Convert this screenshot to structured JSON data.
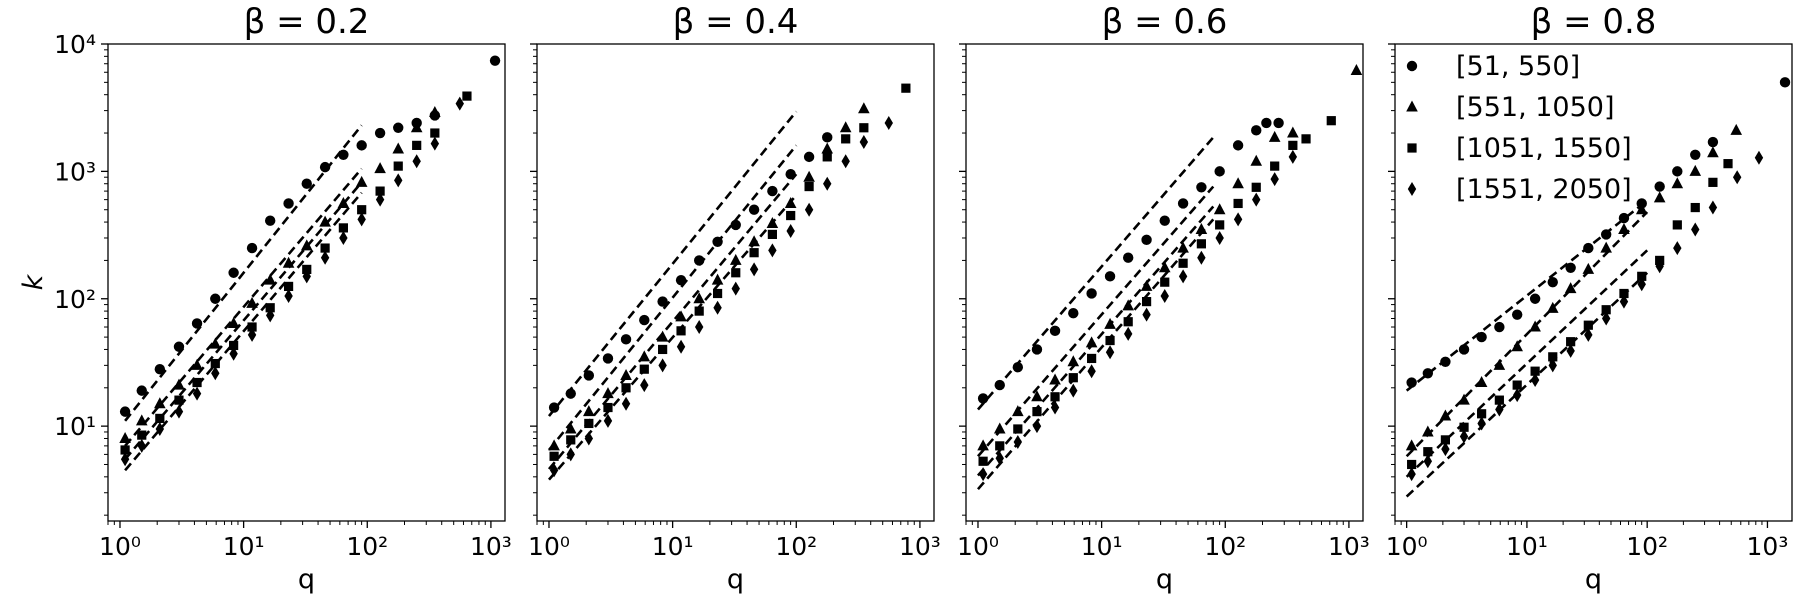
{
  "chart_data": [
    {
      "type": "scatter",
      "title": "β = 0.2",
      "xlabel": "q",
      "ylabel": "k",
      "x_scale": "log",
      "y_scale": "log",
      "xlim": [
        0.8,
        1300
      ],
      "ylim": [
        1.8,
        10000
      ],
      "xticks": [
        1,
        10,
        100,
        1000
      ],
      "yticks": [
        10,
        100,
        1000,
        10000
      ],
      "series": [
        {
          "name": "[51, 550]",
          "marker": "circle",
          "x": [
            1.1,
            1.5,
            2.1,
            3.0,
            4.2,
            5.9,
            8.3,
            11.7,
            16.4,
            23.1,
            32.4,
            45.6,
            64.1,
            90.1,
            127,
            178,
            251,
            352,
            1080
          ],
          "y": [
            13,
            19,
            28,
            42,
            64,
            100,
            160,
            250,
            410,
            560,
            800,
            1080,
            1350,
            1600,
            2000,
            2200,
            2400,
            2750,
            7400
          ]
        },
        {
          "name": "[551, 1050]",
          "marker": "triangle",
          "x": [
            1.1,
            1.5,
            2.1,
            3.0,
            4.2,
            5.9,
            8.3,
            11.7,
            16.4,
            23.1,
            32.4,
            45.6,
            64.1,
            90.1,
            127,
            178,
            251,
            352
          ],
          "y": [
            8,
            11,
            15,
            21,
            30,
            44,
            64,
            92,
            140,
            190,
            260,
            400,
            560,
            820,
            1050,
            1500,
            2200,
            2900
          ]
        },
        {
          "name": "[1051, 1550]",
          "marker": "square",
          "x": [
            1.1,
            1.5,
            2.1,
            3.0,
            4.2,
            5.9,
            8.3,
            11.7,
            16.4,
            23.1,
            32.4,
            45.6,
            64.1,
            90.1,
            127,
            178,
            251,
            352,
            640
          ],
          "y": [
            6.5,
            8.5,
            11.5,
            16,
            22,
            31,
            43,
            60,
            85,
            125,
            170,
            250,
            360,
            500,
            700,
            1100,
            1600,
            2000,
            3900
          ]
        },
        {
          "name": "[1551, 2050]",
          "marker": "diamond",
          "x": [
            1.1,
            1.5,
            2.1,
            3.0,
            4.2,
            5.9,
            8.3,
            11.7,
            16.4,
            23.1,
            32.4,
            45.6,
            64.1,
            90.1,
            127,
            178,
            251,
            352,
            560
          ],
          "y": [
            5.5,
            7,
            9.5,
            13,
            18,
            26,
            37,
            52,
            74,
            105,
            150,
            210,
            300,
            420,
            600,
            850,
            1200,
            1650,
            3400
          ]
        }
      ],
      "fit_lines": [
        {
          "x": [
            1.1,
            90
          ],
          "y": [
            11,
            2300
          ]
        },
        {
          "x": [
            1.1,
            90
          ],
          "y": [
            7,
            1050
          ]
        },
        {
          "x": [
            1.1,
            90
          ],
          "y": [
            5.5,
            820
          ]
        },
        {
          "x": [
            1.1,
            90
          ],
          "y": [
            4.5,
            680
          ]
        }
      ]
    },
    {
      "type": "scatter",
      "title": "β = 0.4",
      "xlabel": "q",
      "ylabel": "",
      "x_scale": "log",
      "y_scale": "log",
      "xlim": [
        0.8,
        1300
      ],
      "ylim": [
        1.8,
        10000
      ],
      "xticks": [
        1,
        10,
        100,
        1000
      ],
      "yticks": [
        10,
        100,
        1000,
        10000
      ],
      "series": [
        {
          "name": "[51, 550]",
          "marker": "circle",
          "x": [
            1.1,
            1.5,
            2.1,
            3.0,
            4.2,
            5.9,
            8.3,
            11.7,
            16.4,
            23.1,
            32.4,
            45.6,
            64.1,
            90.1,
            127,
            178
          ],
          "y": [
            14,
            18,
            25,
            34,
            48,
            68,
            95,
            140,
            200,
            280,
            380,
            500,
            700,
            950,
            1300,
            1850
          ]
        },
        {
          "name": "[551, 1050]",
          "marker": "triangle",
          "x": [
            1.1,
            1.5,
            2.1,
            3.0,
            4.2,
            5.9,
            8.3,
            11.7,
            16.4,
            23.1,
            32.4,
            45.6,
            64.1,
            90.1,
            127,
            178,
            251,
            352
          ],
          "y": [
            7,
            9.5,
            13,
            18,
            25,
            35,
            50,
            72,
            100,
            140,
            200,
            280,
            390,
            560,
            900,
            1500,
            2200,
            3100
          ]
        },
        {
          "name": "[1051, 1550]",
          "marker": "square",
          "x": [
            1.1,
            1.5,
            2.1,
            3.0,
            4.2,
            5.9,
            8.3,
            11.7,
            16.4,
            23.1,
            32.4,
            45.6,
            64.1,
            90.1,
            127,
            178,
            251,
            352,
            770
          ],
          "y": [
            5.8,
            7.8,
            10.5,
            14,
            20,
            28,
            40,
            56,
            80,
            110,
            160,
            230,
            320,
            450,
            760,
            1300,
            1800,
            2200,
            4500
          ]
        },
        {
          "name": "[1551, 2050]",
          "marker": "diamond",
          "x": [
            1.1,
            1.5,
            2.1,
            3.0,
            4.2,
            5.9,
            8.3,
            11.7,
            16.4,
            23.1,
            32.4,
            45.6,
            64.1,
            90.1,
            127,
            178,
            251,
            352,
            560
          ],
          "y": [
            4.5,
            6,
            8,
            11,
            15,
            21,
            30,
            42,
            60,
            85,
            120,
            170,
            240,
            340,
            500,
            800,
            1200,
            1700,
            2400
          ]
        }
      ],
      "fit_lines": [
        {
          "x": [
            1.0,
            100
          ],
          "y": [
            12,
            2950
          ]
        },
        {
          "x": [
            1.0,
            100
          ],
          "y": [
            6.5,
            1600
          ]
        },
        {
          "x": [
            1.0,
            100
          ],
          "y": [
            4.6,
            950
          ]
        },
        {
          "x": [
            1.0,
            100
          ],
          "y": [
            3.8,
            650
          ]
        }
      ]
    },
    {
      "type": "scatter",
      "title": "β = 0.6",
      "xlabel": "q",
      "ylabel": "",
      "x_scale": "log",
      "y_scale": "log",
      "xlim": [
        0.8,
        1300
      ],
      "ylim": [
        1.8,
        10000
      ],
      "xticks": [
        1,
        10,
        100,
        1000
      ],
      "yticks": [
        10,
        100,
        1000,
        10000
      ],
      "series": [
        {
          "name": "[51, 550]",
          "marker": "circle",
          "x": [
            1.1,
            1.5,
            2.1,
            3.0,
            4.2,
            5.9,
            8.3,
            11.7,
            16.4,
            23.1,
            32.4,
            45.6,
            64.1,
            90.1,
            127,
            178,
            215,
            270
          ],
          "y": [
            16.5,
            21,
            29,
            40,
            56,
            77,
            110,
            150,
            210,
            290,
            410,
            560,
            750,
            1000,
            1600,
            2100,
            2400,
            2400
          ]
        },
        {
          "name": "[551, 1050]",
          "marker": "triangle",
          "x": [
            1.1,
            1.5,
            2.1,
            3.0,
            4.2,
            5.9,
            8.3,
            11.7,
            16.4,
            23.1,
            32.4,
            45.6,
            64.1,
            90.1,
            127,
            178,
            251,
            352,
            1150
          ],
          "y": [
            7,
            9.5,
            13,
            17,
            23,
            32,
            45,
            63,
            88,
            125,
            175,
            250,
            350,
            500,
            800,
            1200,
            1850,
            2000,
            6200
          ]
        },
        {
          "name": "[1051, 1550]",
          "marker": "square",
          "x": [
            1.1,
            1.5,
            2.1,
            3.0,
            4.2,
            5.9,
            8.3,
            11.7,
            16.4,
            23.1,
            32.4,
            45.6,
            64.1,
            90.1,
            127,
            178,
            251,
            352,
            450,
            720
          ],
          "y": [
            5.3,
            7,
            9.5,
            13,
            17,
            24,
            34,
            47,
            66,
            95,
            135,
            190,
            270,
            380,
            560,
            750,
            1100,
            1600,
            1800,
            2500
          ]
        },
        {
          "name": "[1551, 2050]",
          "marker": "diamond",
          "x": [
            1.1,
            1.5,
            2.1,
            3.0,
            4.2,
            5.9,
            8.3,
            11.7,
            16.4,
            23.1,
            32.4,
            45.6,
            64.1,
            90.1,
            127,
            178,
            251,
            352
          ],
          "y": [
            4.2,
            5.6,
            7.5,
            10,
            14,
            19,
            27,
            38,
            53,
            75,
            105,
            150,
            210,
            300,
            420,
            600,
            870,
            1300
          ]
        }
      ],
      "fit_lines": [
        {
          "x": [
            1.0,
            80
          ],
          "y": [
            13.5,
            1850
          ]
        },
        {
          "x": [
            1.0,
            80
          ],
          "y": [
            5.8,
            760
          ]
        },
        {
          "x": [
            1.0,
            80
          ],
          "y": [
            4.1,
            530
          ]
        },
        {
          "x": [
            1.0,
            80
          ],
          "y": [
            3.2,
            420
          ]
        }
      ]
    },
    {
      "type": "scatter",
      "title": "β = 0.8",
      "xlabel": "q",
      "ylabel": "",
      "x_scale": "log",
      "y_scale": "log",
      "xlim": [
        0.8,
        1600
      ],
      "ylim": [
        1.8,
        10000
      ],
      "xticks": [
        1,
        10,
        100,
        1000
      ],
      "yticks": [
        10,
        100,
        1000,
        10000
      ],
      "legend": {
        "position": "upper-left"
      },
      "series": [
        {
          "name": "[51, 550]",
          "marker": "circle",
          "x": [
            1.1,
            1.5,
            2.1,
            3.0,
            4.2,
            5.9,
            8.3,
            11.7,
            16.4,
            23.1,
            32.4,
            45.6,
            64.1,
            90.1,
            127,
            178,
            251,
            352,
            1400
          ],
          "y": [
            22,
            26,
            32,
            40,
            50,
            60,
            75,
            100,
            135,
            175,
            250,
            320,
            430,
            560,
            760,
            1000,
            1350,
            1700,
            5000
          ]
        },
        {
          "name": "[551, 1050]",
          "marker": "triangle",
          "x": [
            1.1,
            1.5,
            2.1,
            3.0,
            4.2,
            5.9,
            8.3,
            11.7,
            16.4,
            23.1,
            32.4,
            45.6,
            64.1,
            90.1,
            127,
            178,
            251,
            352,
            550
          ],
          "y": [
            7,
            9,
            12,
            16,
            22,
            30,
            42,
            60,
            84,
            120,
            170,
            250,
            350,
            500,
            620,
            800,
            1000,
            1400,
            2100
          ]
        },
        {
          "name": "[1051, 1550]",
          "marker": "square",
          "x": [
            1.1,
            1.5,
            2.1,
            3.0,
            4.2,
            5.9,
            8.3,
            11.7,
            16.4,
            23.1,
            32.4,
            45.6,
            64.1,
            90.1,
            127,
            178,
            251,
            352,
            470
          ],
          "y": [
            5,
            6.3,
            7.8,
            9.8,
            12.5,
            16,
            21,
            27,
            35,
            46,
            62,
            82,
            110,
            150,
            200,
            380,
            520,
            820,
            1150
          ]
        },
        {
          "name": "[1551, 2050]",
          "marker": "diamond",
          "x": [
            1.1,
            1.5,
            2.1,
            3.0,
            4.2,
            5.9,
            8.3,
            11.7,
            16.4,
            23.1,
            32.4,
            45.6,
            64.1,
            90.1,
            127,
            178,
            251,
            352,
            560,
            850
          ],
          "y": [
            4.2,
            5.3,
            6.6,
            8.3,
            10.5,
            13.5,
            17.5,
            23,
            30,
            39,
            52,
            70,
            95,
            130,
            180,
            250,
            350,
            520,
            900,
            1280
          ]
        }
      ],
      "fit_lines": [
        {
          "x": [
            1.0,
            100
          ],
          "y": [
            19,
            590
          ]
        },
        {
          "x": [
            1.0,
            100
          ],
          "y": [
            5.8,
            480
          ]
        },
        {
          "x": [
            1.0,
            100
          ],
          "y": [
            4.0,
            240
          ]
        },
        {
          "x": [
            1.0,
            100
          ],
          "y": [
            2.8,
            160
          ]
        }
      ]
    }
  ]
}
